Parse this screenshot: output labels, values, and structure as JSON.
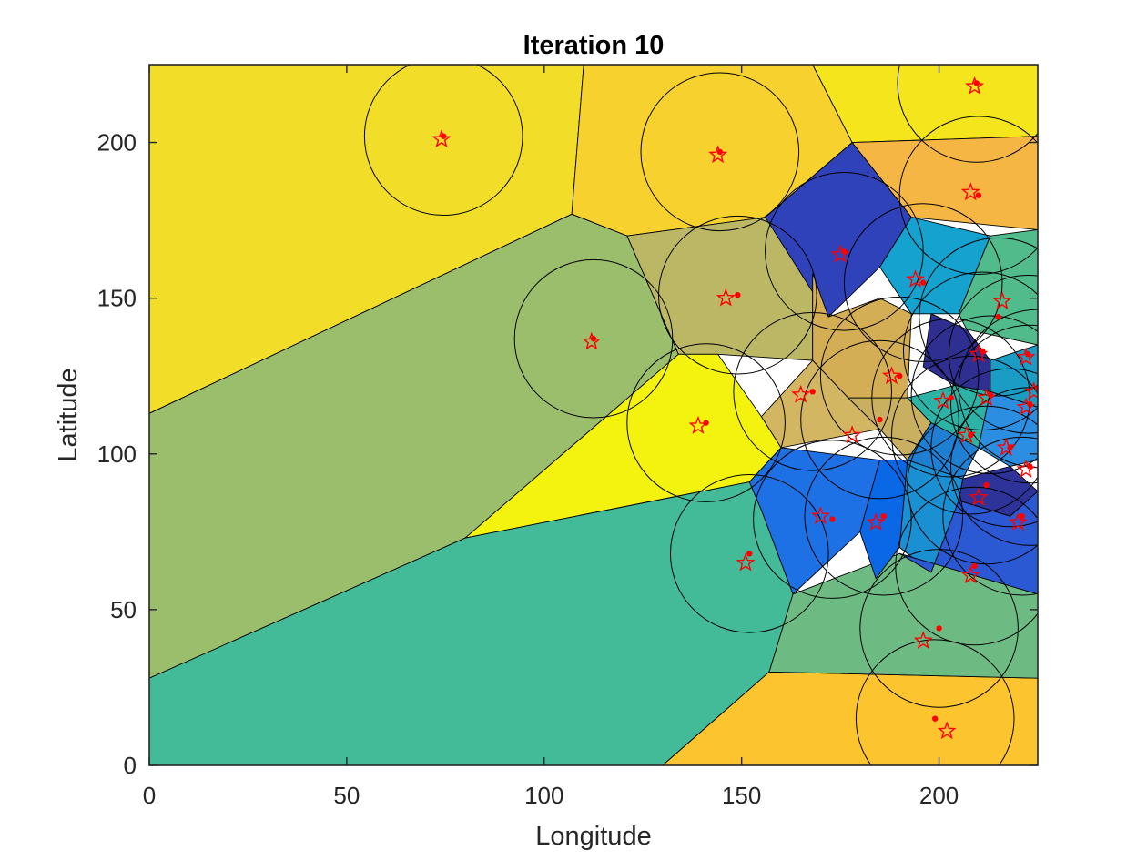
{
  "chart_data": {
    "type": "scatter",
    "title": "Iteration 10",
    "xlabel": "Longitude",
    "ylabel": "Latitude",
    "xlim": [
      0,
      225
    ],
    "ylim": [
      0,
      225
    ],
    "xticks": [
      "0",
      "50",
      "100",
      "150",
      "200"
    ],
    "yticks": [
      "0",
      "50",
      "100",
      "150",
      "200"
    ],
    "grid": false,
    "circle_radius": 20,
    "marker_color": "#ff0000",
    "outline_color": "#000000",
    "regions": [
      {
        "color": "#f2dd29",
        "vertices": [
          [
            0,
            225
          ],
          [
            110,
            225
          ],
          [
            107,
            177
          ],
          [
            0,
            113
          ]
        ]
      },
      {
        "color": "#f7d12d",
        "vertices": [
          [
            110,
            225
          ],
          [
            168,
            225
          ],
          [
            178,
            200
          ],
          [
            156,
            176
          ],
          [
            121,
            170
          ],
          [
            107,
            177
          ]
        ]
      },
      {
        "color": "#f5e51c",
        "vertices": [
          [
            168,
            225
          ],
          [
            225,
            225
          ],
          [
            225,
            202
          ],
          [
            178,
            200
          ]
        ]
      },
      {
        "color": "#f5b643",
        "vertices": [
          [
            178,
            200
          ],
          [
            225,
            202
          ],
          [
            225,
            172
          ],
          [
            193,
            176
          ]
        ]
      },
      {
        "color": "#9bbe6d",
        "vertices": [
          [
            0,
            113
          ],
          [
            107,
            177
          ],
          [
            121,
            170
          ],
          [
            134,
            132
          ],
          [
            80,
            73
          ],
          [
            0,
            28
          ]
        ]
      },
      {
        "color": "#bcb765",
        "vertices": [
          [
            121,
            170
          ],
          [
            156,
            176
          ],
          [
            168,
            158
          ],
          [
            168,
            130
          ],
          [
            144,
            132
          ],
          [
            134,
            132
          ]
        ]
      },
      {
        "color": "#f4f30f",
        "vertices": [
          [
            134,
            132
          ],
          [
            144,
            132
          ],
          [
            155,
            112
          ],
          [
            160,
            102
          ],
          [
            152,
            91
          ],
          [
            80,
            73
          ]
        ]
      },
      {
        "color": "#44bb98",
        "vertices": [
          [
            0,
            28
          ],
          [
            80,
            73
          ],
          [
            152,
            91
          ],
          [
            155,
            82
          ],
          [
            163,
            55
          ],
          [
            157,
            30
          ],
          [
            130,
            0
          ],
          [
            0,
            0
          ]
        ]
      },
      {
        "color": "#fcc530",
        "vertices": [
          [
            130,
            0
          ],
          [
            157,
            30
          ],
          [
            225,
            28
          ],
          [
            225,
            0
          ]
        ]
      },
      {
        "color": "#6dbb83",
        "vertices": [
          [
            157,
            30
          ],
          [
            163,
            55
          ],
          [
            190,
            68
          ],
          [
            225,
            55
          ],
          [
            225,
            28
          ]
        ]
      },
      {
        "color": "#3042ba",
        "vertices": [
          [
            156,
            176
          ],
          [
            178,
            200
          ],
          [
            193,
            176
          ],
          [
            185,
            160
          ],
          [
            172,
            144
          ]
        ]
      },
      {
        "color": "#15a2cf",
        "vertices": [
          [
            185,
            160
          ],
          [
            193,
            176
          ],
          [
            213,
            170
          ],
          [
            205,
            145
          ],
          [
            193,
            145
          ]
        ]
      },
      {
        "color": "#51bb8c",
        "vertices": [
          [
            213,
            170
          ],
          [
            225,
            172
          ],
          [
            225,
            135
          ],
          [
            207,
            140
          ],
          [
            205,
            145
          ]
        ]
      },
      {
        "color": "#d4ae55",
        "vertices": [
          [
            168,
            158
          ],
          [
            172,
            144
          ],
          [
            185,
            150
          ],
          [
            193,
            145
          ],
          [
            192,
            118
          ],
          [
            177,
            118
          ],
          [
            168,
            130
          ]
        ]
      },
      {
        "color": "#d3b662",
        "vertices": [
          [
            155,
            112
          ],
          [
            168,
            130
          ],
          [
            177,
            118
          ],
          [
            185,
            108
          ],
          [
            160,
            102
          ]
        ]
      },
      {
        "color": "#c9b061",
        "vertices": [
          [
            177,
            118
          ],
          [
            192,
            118
          ],
          [
            198,
            110
          ],
          [
            192,
            98
          ],
          [
            185,
            108
          ]
        ]
      },
      {
        "color": "#2f2f91",
        "vertices": [
          [
            198,
            145
          ],
          [
            207,
            140
          ],
          [
            213,
            130
          ],
          [
            213,
            120
          ],
          [
            204,
            122
          ],
          [
            196,
            128
          ]
        ]
      },
      {
        "color": "#1a9cc5",
        "vertices": [
          [
            213,
            130
          ],
          [
            225,
            135
          ],
          [
            225,
            115
          ],
          [
            213,
            120
          ]
        ]
      },
      {
        "color": "#2db3a5",
        "vertices": [
          [
            192,
            118
          ],
          [
            204,
            122
          ],
          [
            213,
            120
          ],
          [
            210,
            102
          ],
          [
            198,
            110
          ]
        ]
      },
      {
        "color": "#2b8ee0",
        "vertices": [
          [
            210,
            102
          ],
          [
            213,
            120
          ],
          [
            225,
            115
          ],
          [
            225,
            98
          ],
          [
            218,
            96
          ]
        ]
      },
      {
        "color": "#1f7fd3",
        "vertices": [
          [
            192,
            98
          ],
          [
            198,
            110
          ],
          [
            210,
            102
          ],
          [
            206,
            92
          ]
        ]
      },
      {
        "color": "#2d3398",
        "vertices": [
          [
            206,
            92
          ],
          [
            218,
            96
          ],
          [
            225,
            88
          ],
          [
            218,
            80
          ],
          [
            205,
            85
          ]
        ]
      },
      {
        "color": "#1e70e5",
        "vertices": [
          [
            152,
            91
          ],
          [
            160,
            102
          ],
          [
            185,
            98
          ],
          [
            180,
            75
          ],
          [
            163,
            55
          ],
          [
            155,
            82
          ]
        ]
      },
      {
        "color": "#0a67e6",
        "vertices": [
          [
            180,
            75
          ],
          [
            185,
            98
          ],
          [
            192,
            98
          ],
          [
            190,
            70
          ],
          [
            184,
            60
          ]
        ]
      },
      {
        "color": "#1a8fd2",
        "vertices": [
          [
            190,
            70
          ],
          [
            192,
            98
          ],
          [
            206,
            92
          ],
          [
            205,
            85
          ],
          [
            198,
            62
          ]
        ]
      },
      {
        "color": "#2b59d3",
        "vertices": [
          [
            198,
            62
          ],
          [
            205,
            85
          ],
          [
            218,
            80
          ],
          [
            225,
            88
          ],
          [
            225,
            55
          ],
          [
            190,
            68
          ]
        ]
      }
    ],
    "sites": [
      {
        "star": [
          74,
          201
        ],
        "dot": [
          74.5,
          202
        ]
      },
      {
        "star": [
          144,
          196
        ],
        "dot": [
          144.5,
          197
        ]
      },
      {
        "star": [
          209,
          218
        ],
        "dot": [
          209.5,
          219
        ]
      },
      {
        "star": [
          208,
          184
        ],
        "dot": [
          210,
          183
        ]
      },
      {
        "star": [
          175,
          164
        ],
        "dot": [
          176,
          165
        ]
      },
      {
        "star": [
          194,
          156
        ],
        "dot": [
          196,
          155
        ]
      },
      {
        "star": [
          146,
          150
        ],
        "dot": [
          149,
          151
        ]
      },
      {
        "star": [
          112,
          136
        ],
        "dot": [
          112.5,
          137
        ]
      },
      {
        "star": [
          216,
          149
        ],
        "dot": [
          215,
          144
        ]
      },
      {
        "star": [
          222,
          131
        ],
        "dot": [
          222.5,
          132
        ]
      },
      {
        "star": [
          210,
          132
        ],
        "dot": [
          211,
          133
        ]
      },
      {
        "star": [
          188,
          125
        ],
        "dot": [
          190,
          125
        ]
      },
      {
        "star": [
          224,
          120
        ],
        "dot": [
          225,
          121
        ]
      },
      {
        "star": [
          212,
          118
        ],
        "dot": [
          213,
          119
        ]
      },
      {
        "star": [
          201,
          117
        ],
        "dot": [
          203,
          118
        ]
      },
      {
        "star": [
          165,
          119
        ],
        "dot": [
          168,
          120
        ]
      },
      {
        "star": [
          222,
          115
        ],
        "dot": [
          223,
          116
        ]
      },
      {
        "star": [
          139,
          109
        ],
        "dot": [
          141,
          110
        ]
      },
      {
        "star": [
          178,
          106
        ],
        "dot": [
          185,
          111
        ]
      },
      {
        "star": [
          207,
          106
        ],
        "dot": [
          208,
          106
        ]
      },
      {
        "star": [
          217,
          102
        ],
        "dot": [
          218,
          102
        ]
      },
      {
        "star": [
          222,
          95
        ],
        "dot": [
          223,
          96
        ]
      },
      {
        "star": [
          210,
          86
        ],
        "dot": [
          212,
          90
        ]
      },
      {
        "star": [
          170,
          80
        ],
        "dot": [
          173,
          79
        ]
      },
      {
        "star": [
          184,
          78
        ],
        "dot": [
          186,
          80
        ]
      },
      {
        "star": [
          220,
          78
        ],
        "dot": [
          221,
          80
        ]
      },
      {
        "star": [
          151,
          65
        ],
        "dot": [
          152,
          68
        ]
      },
      {
        "star": [
          208,
          61
        ],
        "dot": [
          209,
          64
        ]
      },
      {
        "star": [
          196,
          40
        ],
        "dot": [
          200,
          44
        ]
      },
      {
        "star": [
          202,
          11
        ],
        "dot": [
          199,
          15
        ]
      }
    ]
  }
}
